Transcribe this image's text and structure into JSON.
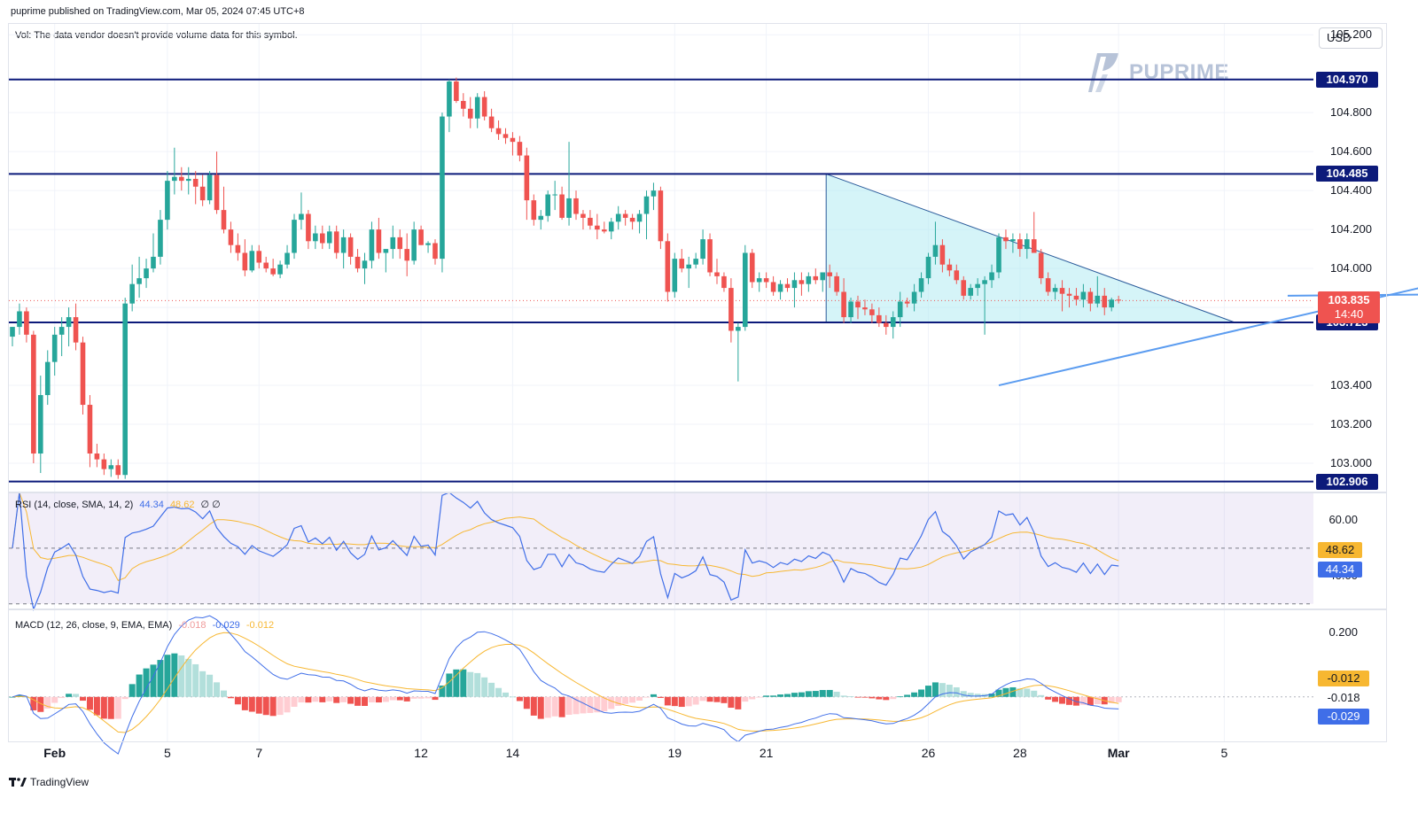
{
  "header": {
    "published": "puprime published on TradingView.com, Mar 05, 2024 07:45 UTC+8",
    "vol_note": "Vol: The data vendor doesn't provide volume data for this symbol."
  },
  "currency": "USD",
  "brand": {
    "name": "PUPRIME"
  },
  "footer": {
    "logo_text": "TradingView"
  },
  "colors": {
    "up": "#26a69a",
    "down": "#ef5350",
    "level_line": "#0c1a7a",
    "trendline": "#5b9cf0",
    "triangle_fill": "#b2ebf2",
    "rsi_line": "#3f6ee8",
    "rsi_ma": "#f7b731",
    "macd_line": "#3f6ee8",
    "signal_line": "#f7b731"
  },
  "chart_data": [
    {
      "type": "candlestick",
      "x_ticks": [
        "Feb",
        "5",
        "7",
        "12",
        "14",
        "19",
        "21",
        "26",
        "28",
        "Mar",
        "5"
      ],
      "y_ticks": [
        "105.200",
        "104.800",
        "104.600",
        "104.400",
        "104.200",
        "104.000",
        "103.800",
        "103.400",
        "103.200",
        "103.000"
      ],
      "ylim": [
        102.85,
        105.26
      ],
      "levels": [
        {
          "label": "104.970",
          "value": 104.97
        },
        {
          "label": "104.485",
          "value": 104.485
        },
        {
          "label": "103.723",
          "value": 103.723
        },
        {
          "label": "102.906",
          "value": 102.906
        }
      ],
      "last_price": {
        "label": "103.835",
        "value": 103.835,
        "countdown": "14:40"
      },
      "series": [
        [
          103.65,
          103.7,
          103.6,
          103.7
        ],
        [
          103.7,
          103.82,
          103.66,
          103.78
        ],
        [
          103.78,
          103.8,
          103.62,
          103.66
        ],
        [
          103.66,
          103.68,
          103.0,
          103.05
        ],
        [
          103.05,
          103.45,
          102.95,
          103.35
        ],
        [
          103.35,
          103.58,
          103.3,
          103.52
        ],
        [
          103.52,
          103.7,
          103.45,
          103.66
        ],
        [
          103.66,
          103.75,
          103.55,
          103.7
        ],
        [
          103.7,
          103.8,
          103.6,
          103.75
        ],
        [
          103.75,
          103.82,
          103.58,
          103.62
        ],
        [
          103.62,
          103.65,
          103.25,
          103.3
        ],
        [
          103.3,
          103.35,
          102.98,
          103.05
        ],
        [
          103.05,
          103.1,
          102.98,
          103.02
        ],
        [
          103.02,
          103.05,
          102.94,
          102.97
        ],
        [
          102.97,
          103.02,
          102.93,
          102.99
        ],
        [
          102.99,
          103.02,
          102.92,
          102.94
        ],
        [
          102.94,
          103.85,
          102.92,
          103.82
        ],
        [
          103.82,
          104.02,
          103.78,
          103.92
        ],
        [
          103.92,
          104.06,
          103.85,
          103.95
        ],
        [
          103.95,
          104.05,
          103.9,
          104.0
        ],
        [
          104.0,
          104.18,
          103.98,
          104.06
        ],
        [
          104.06,
          104.3,
          104.02,
          104.25
        ],
        [
          104.25,
          104.5,
          104.2,
          104.45
        ],
        [
          104.45,
          104.62,
          104.38,
          104.47
        ],
        [
          104.47,
          104.52,
          104.4,
          104.45
        ],
        [
          104.45,
          104.52,
          104.38,
          104.46
        ],
        [
          104.46,
          104.5,
          104.33,
          104.42
        ],
        [
          104.42,
          104.48,
          104.32,
          104.35
        ],
        [
          104.35,
          104.5,
          104.33,
          104.48
        ],
        [
          104.48,
          104.6,
          104.28,
          104.3
        ],
        [
          104.3,
          104.42,
          104.18,
          104.2
        ],
        [
          104.2,
          104.24,
          104.08,
          104.12
        ],
        [
          104.12,
          104.18,
          104.04,
          104.08
        ],
        [
          104.08,
          104.15,
          103.96,
          103.99
        ],
        [
          103.99,
          104.12,
          103.98,
          104.09
        ],
        [
          104.09,
          104.12,
          104.0,
          104.03
        ],
        [
          104.03,
          104.06,
          103.98,
          104.0
        ],
        [
          104.0,
          104.05,
          103.96,
          103.97
        ],
        [
          103.97,
          104.04,
          103.95,
          104.02
        ],
        [
          104.02,
          104.12,
          104.0,
          104.08
        ],
        [
          104.08,
          104.28,
          104.05,
          104.25
        ],
        [
          104.25,
          104.39,
          104.2,
          104.28
        ],
        [
          104.28,
          104.3,
          104.1,
          104.14
        ],
        [
          104.14,
          104.22,
          104.1,
          104.18
        ],
        [
          104.18,
          104.22,
          104.1,
          104.13
        ],
        [
          104.13,
          104.22,
          104.1,
          104.19
        ],
        [
          104.19,
          104.22,
          104.05,
          104.08
        ],
        [
          104.08,
          104.2,
          104.0,
          104.16
        ],
        [
          104.16,
          104.18,
          104.02,
          104.06
        ],
        [
          104.06,
          104.1,
          103.98,
          104.0
        ],
        [
          104.0,
          104.08,
          103.92,
          104.04
        ],
        [
          104.04,
          104.24,
          104.0,
          104.2
        ],
        [
          104.2,
          104.26,
          104.05,
          104.08
        ],
        [
          104.08,
          104.1,
          103.98,
          104.1
        ],
        [
          104.1,
          104.22,
          104.05,
          104.16
        ],
        [
          104.16,
          104.2,
          104.05,
          104.1
        ],
        [
          104.1,
          104.18,
          103.96,
          104.04
        ],
        [
          104.04,
          104.24,
          104.02,
          104.2
        ],
        [
          104.2,
          104.22,
          104.12,
          104.12
        ],
        [
          104.12,
          104.14,
          104.08,
          104.13
        ],
        [
          104.13,
          104.15,
          104.02,
          104.05
        ],
        [
          104.05,
          104.8,
          103.98,
          104.78
        ],
        [
          104.78,
          104.97,
          104.7,
          104.96
        ],
        [
          104.96,
          104.98,
          104.85,
          104.86
        ],
        [
          104.86,
          104.9,
          104.78,
          104.82
        ],
        [
          104.82,
          104.88,
          104.72,
          104.77
        ],
        [
          104.77,
          104.9,
          104.72,
          104.88
        ],
        [
          104.88,
          104.91,
          104.76,
          104.78
        ],
        [
          104.78,
          104.82,
          104.7,
          104.72
        ],
        [
          104.72,
          104.76,
          104.66,
          104.69
        ],
        [
          104.69,
          104.72,
          104.64,
          104.67
        ],
        [
          104.67,
          104.7,
          104.58,
          104.65
        ],
        [
          104.65,
          104.68,
          104.55,
          104.58
        ],
        [
          104.58,
          104.62,
          104.25,
          104.35
        ],
        [
          104.35,
          104.38,
          104.22,
          104.25
        ],
        [
          104.25,
          104.3,
          104.2,
          104.27
        ],
        [
          104.27,
          104.4,
          104.24,
          104.38
        ],
        [
          104.38,
          104.45,
          104.3,
          104.38
        ],
        [
          104.38,
          104.42,
          104.25,
          104.26
        ],
        [
          104.26,
          104.65,
          104.22,
          104.36
        ],
        [
          104.36,
          104.4,
          104.25,
          104.28
        ],
        [
          104.28,
          104.3,
          104.2,
          104.26
        ],
        [
          104.26,
          104.3,
          104.2,
          104.22
        ],
        [
          104.22,
          104.28,
          104.15,
          104.2
        ],
        [
          104.2,
          104.24,
          104.18,
          104.19
        ],
        [
          104.19,
          104.26,
          104.15,
          104.24
        ],
        [
          104.24,
          104.32,
          104.2,
          104.28
        ],
        [
          104.28,
          104.3,
          104.22,
          104.26
        ],
        [
          104.26,
          104.28,
          104.2,
          104.24
        ],
        [
          104.24,
          104.3,
          104.18,
          104.28
        ],
        [
          104.28,
          104.4,
          104.15,
          104.37
        ],
        [
          104.37,
          104.44,
          104.3,
          104.4
        ],
        [
          104.4,
          104.42,
          104.1,
          104.14
        ],
        [
          104.14,
          104.18,
          103.83,
          103.88
        ],
        [
          103.88,
          104.08,
          103.85,
          104.05
        ],
        [
          104.05,
          104.1,
          103.98,
          104.0
        ],
        [
          104.0,
          104.06,
          103.9,
          104.02
        ],
        [
          104.02,
          104.08,
          104.0,
          104.05
        ],
        [
          104.05,
          104.2,
          104.02,
          104.15
        ],
        [
          104.15,
          104.18,
          103.96,
          103.98
        ],
        [
          103.98,
          104.05,
          103.92,
          103.96
        ],
        [
          103.96,
          103.98,
          103.88,
          103.9
        ],
        [
          103.9,
          103.95,
          103.62,
          103.68
        ],
        [
          103.68,
          103.72,
          103.42,
          103.7
        ],
        [
          103.7,
          104.12,
          103.68,
          104.08
        ],
        [
          104.08,
          104.1,
          103.9,
          103.93
        ],
        [
          103.93,
          103.98,
          103.88,
          103.95
        ],
        [
          103.95,
          103.98,
          103.9,
          103.93
        ],
        [
          103.93,
          103.96,
          103.86,
          103.88
        ],
        [
          103.88,
          103.94,
          103.84,
          103.92
        ],
        [
          103.92,
          103.95,
          103.88,
          103.9
        ],
        [
          103.9,
          103.98,
          103.8,
          103.94
        ],
        [
          103.94,
          103.98,
          103.86,
          103.92
        ],
        [
          103.92,
          103.98,
          103.88,
          103.96
        ],
        [
          103.96,
          104.0,
          103.92,
          103.94
        ],
        [
          103.94,
          103.98,
          103.88,
          103.98
        ],
        [
          103.98,
          104.02,
          103.9,
          103.96
        ],
        [
          103.96,
          103.98,
          103.86,
          103.88
        ],
        [
          103.88,
          103.95,
          103.72,
          103.75
        ],
        [
          103.75,
          103.85,
          103.72,
          103.83
        ],
        [
          103.83,
          103.86,
          103.74,
          103.8
        ],
        [
          103.8,
          103.84,
          103.76,
          103.79
        ],
        [
          103.79,
          103.82,
          103.72,
          103.76
        ],
        [
          103.76,
          103.8,
          103.7,
          103.72
        ],
        [
          103.72,
          103.76,
          103.66,
          103.7
        ],
        [
          103.7,
          103.78,
          103.64,
          103.75
        ],
        [
          103.75,
          103.88,
          103.7,
          103.83
        ],
        [
          103.83,
          103.85,
          103.8,
          103.82
        ],
        [
          103.82,
          103.92,
          103.78,
          103.88
        ],
        [
          103.88,
          103.98,
          103.85,
          103.95
        ],
        [
          103.95,
          104.08,
          103.92,
          104.06
        ],
        [
          104.06,
          104.24,
          104.02,
          104.12
        ],
        [
          104.12,
          104.15,
          103.98,
          104.02
        ],
        [
          104.02,
          104.05,
          103.96,
          103.99
        ],
        [
          103.99,
          104.02,
          103.92,
          103.94
        ],
        [
          103.94,
          103.96,
          103.84,
          103.86
        ],
        [
          103.86,
          103.92,
          103.84,
          103.9
        ],
        [
          103.9,
          103.95,
          103.86,
          103.92
        ],
        [
          103.92,
          103.96,
          103.66,
          103.94
        ],
        [
          103.94,
          104.02,
          103.9,
          103.98
        ],
        [
          103.98,
          104.18,
          103.95,
          104.16
        ],
        [
          104.16,
          104.2,
          104.1,
          104.14
        ],
        [
          104.14,
          104.18,
          104.08,
          104.15
        ],
        [
          104.15,
          104.18,
          104.06,
          104.1
        ],
        [
          104.1,
          104.18,
          104.05,
          104.15
        ],
        [
          104.15,
          104.29,
          104.08,
          104.08
        ],
        [
          104.08,
          104.1,
          103.92,
          103.95
        ],
        [
          103.95,
          103.98,
          103.86,
          103.88
        ],
        [
          103.88,
          103.92,
          103.84,
          103.9
        ],
        [
          103.9,
          103.94,
          103.78,
          103.87
        ],
        [
          103.87,
          103.9,
          103.8,
          103.86
        ],
        [
          103.86,
          103.9,
          103.81,
          103.84
        ],
        [
          103.84,
          103.92,
          103.8,
          103.88
        ],
        [
          103.88,
          103.9,
          103.78,
          103.82
        ],
        [
          103.82,
          103.96,
          103.8,
          103.86
        ],
        [
          103.86,
          103.9,
          103.76,
          103.8
        ],
        [
          103.8,
          103.85,
          103.78,
          103.84
        ],
        [
          103.84,
          103.86,
          103.82,
          103.835
        ]
      ],
      "triangle": {
        "start_index": 116,
        "top": 104.485,
        "base": 103.723,
        "end_index": 172
      },
      "trendlines": [
        {
          "from": [
            140,
            103.4
          ],
          "to": [
            232,
            104.17
          ]
        },
        {
          "from": [
            181,
            103.86
          ],
          "to": [
            212,
            103.87
          ]
        }
      ]
    },
    {
      "type": "line",
      "name": "RSI",
      "legend": "RSI (14, close, SMA, 14, 2)",
      "rsi_value": "44.34",
      "ma_value": "48.62",
      "extras": "∅ ∅",
      "y_ticks": [
        "60.00",
        "40.00"
      ],
      "ylim": [
        28,
        70
      ],
      "band": [
        30,
        70
      ],
      "mid": 50
    },
    {
      "type": "bar",
      "name": "MACD",
      "legend": "MACD (12, 26, close, 9, EMA, EMA)",
      "hist_value": "-0.018",
      "macd_value": "-0.029",
      "signal_value": "-0.012",
      "y_ticks": [
        "0.200"
      ],
      "ylim": [
        -0.14,
        0.27
      ]
    }
  ]
}
